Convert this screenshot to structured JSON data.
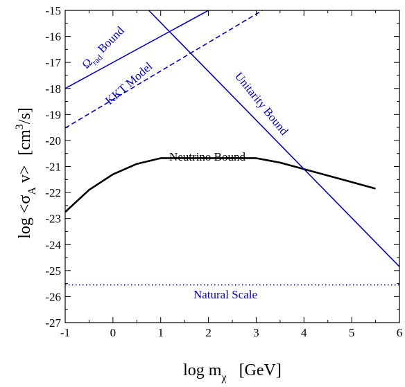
{
  "chart_data": {
    "type": "line",
    "xlim": [
      -1,
      6
    ],
    "ylim": [
      -27,
      -15
    ],
    "x_ticks": [
      "-1",
      "0",
      "1",
      "2",
      "3",
      "4",
      "5",
      "6"
    ],
    "y_ticks": [
      "-27",
      "-26",
      "-25",
      "-24",
      "-23",
      "-22",
      "-21",
      "-20",
      "-19",
      "-18",
      "-17",
      "-16",
      "-15"
    ],
    "xlabel": {
      "base": "log  m",
      "sub": "χ",
      "units": "[GeV]"
    },
    "ylabel": {
      "pre": "log  <σ",
      "sub": "A",
      "mid": " v>",
      "units_pre": "[cm",
      "units_sup": "3",
      "units_post": "/s]"
    },
    "grid": false,
    "colors": {
      "blue": "#0000dd",
      "black": "#000000"
    },
    "series": [
      {
        "name": "Neutrino Bound",
        "color": "#000000",
        "style": "solid",
        "x": [
          -1,
          -0.5,
          0,
          0.5,
          1,
          1.5,
          2,
          2.5,
          3,
          3.5,
          4,
          4.5,
          5,
          5.5
        ],
        "y": [
          -22.75,
          -21.9,
          -21.3,
          -20.9,
          -20.68,
          -20.68,
          -20.68,
          -20.68,
          -20.68,
          -20.85,
          -21.1,
          -21.35,
          -21.6,
          -21.85
        ]
      },
      {
        "name": "Ω_rad Bound",
        "color": "#0000dd",
        "style": "solid",
        "x": [
          -1,
          2
        ],
        "y": [
          -18,
          -15
        ]
      },
      {
        "name": "KKT Model",
        "color": "#0000dd",
        "style": "dashed",
        "x": [
          -1,
          3.13
        ],
        "y": [
          -19.52,
          -15
        ]
      },
      {
        "name": "Unitarity Bound",
        "color": "#0000dd",
        "style": "solid",
        "x": [
          0.75,
          6
        ],
        "y": [
          -15,
          -24.85
        ]
      },
      {
        "name": "Natural Scale",
        "color": "#0000dd",
        "style": "dotted",
        "x": [
          -1,
          6
        ],
        "y": [
          -25.55,
          -25.55
        ]
      }
    ],
    "annotations": {
      "neutrino": "Neutrino Bound",
      "omega_base": "Ω",
      "omega_sub": "rad",
      "omega_rest": " Bound",
      "kkt": "KKT Model",
      "unitarity": "Unitarity Bound",
      "natural": "Natural Scale"
    }
  }
}
